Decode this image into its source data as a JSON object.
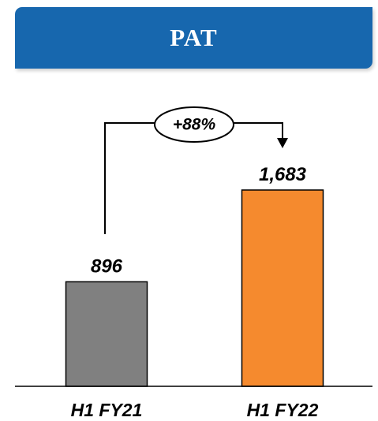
{
  "title": "PAT",
  "chart_data": {
    "type": "bar",
    "categories": [
      "H1 FY21",
      "H1 FY22"
    ],
    "values": [
      896,
      1683
    ],
    "value_labels": [
      "896",
      "1,683"
    ],
    "ylim": [
      0,
      1683
    ],
    "grid": false,
    "colors": [
      "#808080",
      "#f58a2e"
    ],
    "annotation": "+88%"
  }
}
